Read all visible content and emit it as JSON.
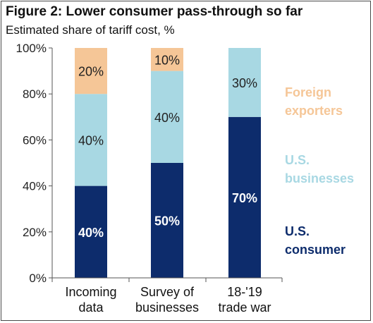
{
  "title": "Figure 2: Lower consumer pass-through so far",
  "subtitle": "Estimated share of tariff cost, %",
  "chart_data": {
    "type": "bar",
    "stacked": true,
    "categories": [
      [
        "Incoming",
        "data"
      ],
      [
        "Survey of",
        "businesses"
      ],
      [
        "18-'19",
        "trade war"
      ]
    ],
    "ylim": [
      0,
      100
    ],
    "yticks": [
      0,
      20,
      40,
      60,
      80,
      100
    ],
    "ytick_labels": [
      "0%",
      "20%",
      "40%",
      "60%",
      "80%",
      "100%"
    ],
    "series": [
      {
        "name": "U.S. consumer",
        "color": "#0d2c6c",
        "values": [
          40,
          50,
          70
        ],
        "labels": [
          "40%",
          "50%",
          "70%"
        ]
      },
      {
        "name": "U.S. businesses",
        "color": "#a8d8e3",
        "values": [
          40,
          40,
          30
        ],
        "labels": [
          "40%",
          "40%",
          "30%"
        ]
      },
      {
        "name": "Foreign exporters",
        "color": "#f5c697",
        "values": [
          20,
          10,
          0
        ],
        "labels": [
          "20%",
          "10%",
          ""
        ]
      }
    ],
    "legend": [
      {
        "lines": [
          "Foreign",
          "exporters"
        ],
        "color": "#f5c697"
      },
      {
        "lines": [
          "U.S.",
          "businesses"
        ],
        "color": "#a8d8e3"
      },
      {
        "lines": [
          "U.S.",
          "consumer"
        ],
        "color": "#0d2c6c"
      }
    ],
    "legend_position": "right"
  }
}
